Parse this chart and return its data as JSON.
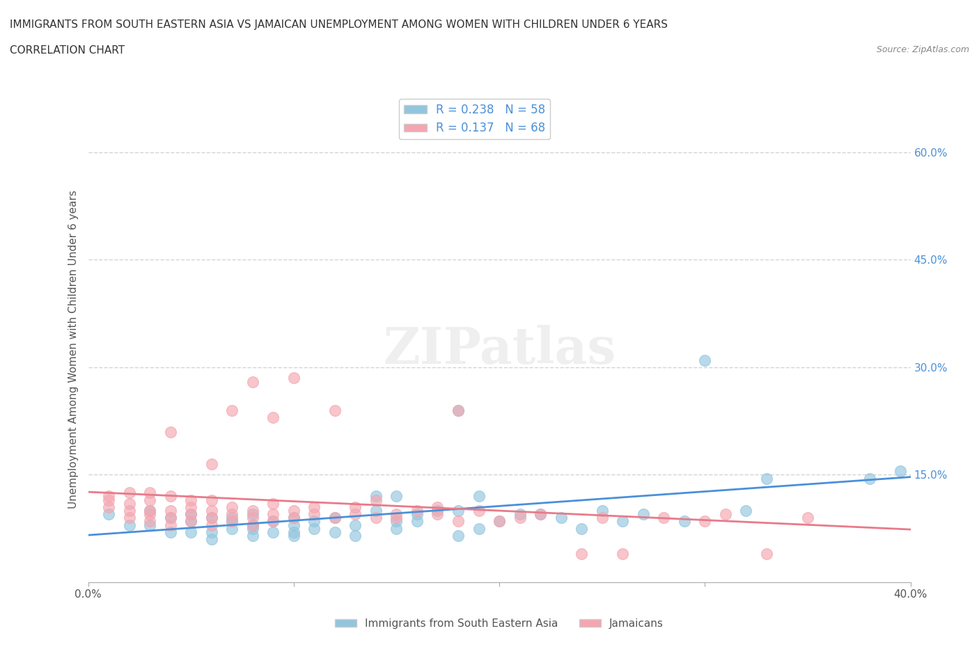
{
  "title_line1": "IMMIGRANTS FROM SOUTH EASTERN ASIA VS JAMAICAN UNEMPLOYMENT AMONG WOMEN WITH CHILDREN UNDER 6 YEARS",
  "title_line2": "CORRELATION CHART",
  "source": "Source: ZipAtlas.com",
  "ylabel": "Unemployment Among Women with Children Under 6 years",
  "xlim": [
    0.0,
    0.4
  ],
  "ylim": [
    0.0,
    0.65
  ],
  "xtick_vals": [
    0.0,
    0.1,
    0.2,
    0.3,
    0.4
  ],
  "xtick_labels": [
    "0.0%",
    "",
    "",
    "",
    "40.0%"
  ],
  "yticks_right": [
    0.15,
    0.3,
    0.45,
    0.6
  ],
  "ytick_labels_right": [
    "15.0%",
    "30.0%",
    "45.0%",
    "60.0%"
  ],
  "blue_R": 0.238,
  "blue_N": 58,
  "pink_R": 0.137,
  "pink_N": 68,
  "blue_color": "#92c5de",
  "pink_color": "#f4a6b0",
  "blue_line_color": "#4a90d9",
  "pink_line_color": "#e87a8a",
  "legend_label_blue": "Immigrants from South Eastern Asia",
  "legend_label_pink": "Jamaicans",
  "blue_scatter_x": [
    0.01,
    0.02,
    0.03,
    0.03,
    0.04,
    0.04,
    0.05,
    0.05,
    0.05,
    0.06,
    0.06,
    0.06,
    0.07,
    0.07,
    0.07,
    0.08,
    0.08,
    0.08,
    0.08,
    0.09,
    0.09,
    0.1,
    0.1,
    0.1,
    0.1,
    0.11,
    0.11,
    0.12,
    0.12,
    0.13,
    0.13,
    0.14,
    0.14,
    0.15,
    0.15,
    0.15,
    0.16,
    0.16,
    0.17,
    0.18,
    0.18,
    0.18,
    0.19,
    0.19,
    0.2,
    0.21,
    0.22,
    0.23,
    0.24,
    0.25,
    0.26,
    0.27,
    0.29,
    0.3,
    0.32,
    0.33,
    0.38,
    0.395
  ],
  "blue_scatter_y": [
    0.095,
    0.08,
    0.08,
    0.1,
    0.07,
    0.09,
    0.07,
    0.085,
    0.095,
    0.06,
    0.07,
    0.09,
    0.075,
    0.085,
    0.09,
    0.065,
    0.075,
    0.08,
    0.095,
    0.07,
    0.085,
    0.065,
    0.07,
    0.08,
    0.09,
    0.075,
    0.085,
    0.07,
    0.09,
    0.065,
    0.08,
    0.1,
    0.12,
    0.075,
    0.085,
    0.12,
    0.085,
    0.095,
    0.1,
    0.065,
    0.1,
    0.24,
    0.075,
    0.12,
    0.085,
    0.095,
    0.095,
    0.09,
    0.075,
    0.1,
    0.085,
    0.095,
    0.085,
    0.31,
    0.1,
    0.145,
    0.145,
    0.155
  ],
  "pink_scatter_x": [
    0.01,
    0.01,
    0.01,
    0.02,
    0.02,
    0.02,
    0.02,
    0.03,
    0.03,
    0.03,
    0.03,
    0.03,
    0.04,
    0.04,
    0.04,
    0.04,
    0.04,
    0.05,
    0.05,
    0.05,
    0.05,
    0.06,
    0.06,
    0.06,
    0.06,
    0.06,
    0.07,
    0.07,
    0.07,
    0.07,
    0.08,
    0.08,
    0.08,
    0.08,
    0.09,
    0.09,
    0.09,
    0.09,
    0.1,
    0.1,
    0.1,
    0.11,
    0.11,
    0.12,
    0.12,
    0.13,
    0.13,
    0.14,
    0.14,
    0.15,
    0.15,
    0.16,
    0.17,
    0.17,
    0.18,
    0.18,
    0.19,
    0.2,
    0.21,
    0.22,
    0.24,
    0.25,
    0.26,
    0.28,
    0.3,
    0.31,
    0.33,
    0.35
  ],
  "pink_scatter_y": [
    0.105,
    0.115,
    0.12,
    0.09,
    0.1,
    0.11,
    0.125,
    0.085,
    0.095,
    0.1,
    0.115,
    0.125,
    0.08,
    0.09,
    0.1,
    0.12,
    0.21,
    0.085,
    0.095,
    0.105,
    0.115,
    0.08,
    0.09,
    0.1,
    0.115,
    0.165,
    0.085,
    0.095,
    0.105,
    0.24,
    0.08,
    0.09,
    0.1,
    0.28,
    0.085,
    0.095,
    0.11,
    0.23,
    0.09,
    0.1,
    0.285,
    0.095,
    0.105,
    0.09,
    0.24,
    0.095,
    0.105,
    0.09,
    0.115,
    0.09,
    0.095,
    0.1,
    0.095,
    0.105,
    0.085,
    0.24,
    0.1,
    0.085,
    0.09,
    0.095,
    0.04,
    0.09,
    0.04,
    0.09,
    0.085,
    0.095,
    0.04,
    0.09
  ],
  "grid_color": "#d3d3d3",
  "background_color": "#ffffff"
}
